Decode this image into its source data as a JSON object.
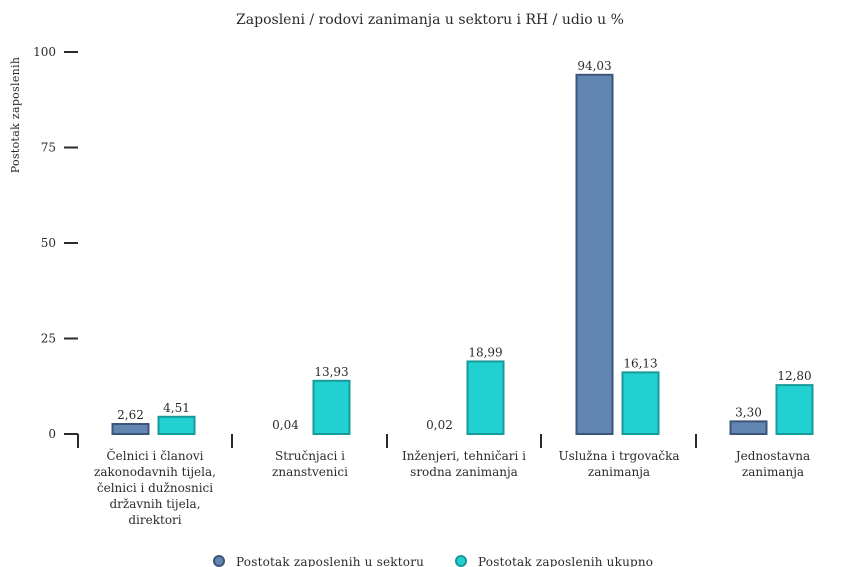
{
  "chart_data": {
    "type": "bar",
    "title": "Zaposleni / rodovi zanimanja u sektoru i RH / udio u %",
    "xlabel": "",
    "ylabel": "Postotak zaposlenih",
    "ylim": [
      0,
      100
    ],
    "yticks": [
      0,
      25,
      50,
      75,
      100
    ],
    "grid": false,
    "legend_position": "bottom",
    "categories": [
      [
        "Čelnici i članovi",
        "zakonodavnih tijela,",
        "čelnici i dužnosnici",
        "državnih tijela,",
        "direktori"
      ],
      [
        "Stručnjaci i",
        "znanstvenici"
      ],
      [
        "Inženjeri, tehničari i",
        "srodna zanimanja"
      ],
      [
        "Uslužna i trgovačka",
        "zanimanja"
      ],
      [
        "Jednostavna",
        "zanimanja"
      ]
    ],
    "series": [
      {
        "name": "Postotak zaposlenih u sektoru",
        "values": [
          2.62,
          0.04,
          0.02,
          94.03,
          3.3
        ],
        "labels": [
          "2,62",
          "0,04",
          "0,02",
          "94,03",
          "3,30"
        ],
        "color": "#6186b2",
        "stroke": "#3b5678"
      },
      {
        "name": "Postotak zaposlenih ukupno",
        "values": [
          4.51,
          13.93,
          18.99,
          16.13,
          12.8
        ],
        "labels": [
          "4,51",
          "13,93",
          "18,99",
          "16,13",
          "12,80"
        ],
        "color": "#21d0d0",
        "stroke": "#169a9a"
      }
    ]
  }
}
